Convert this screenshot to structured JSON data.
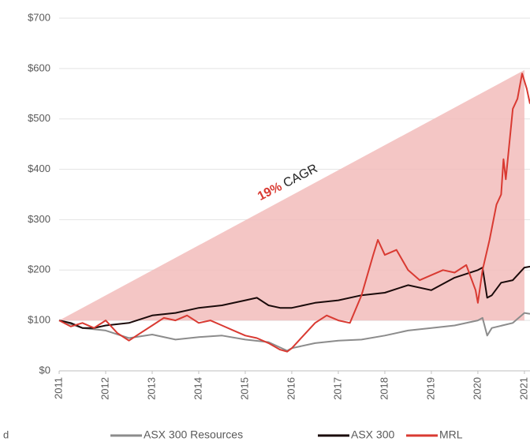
{
  "chart_data": {
    "type": "line",
    "annotation": {
      "highlight": "19%",
      "text": "CAGR",
      "color": "#d93a32"
    },
    "note": "d",
    "cagr": {
      "start": 100,
      "end": 597,
      "color": "#f2bcbb"
    },
    "xlim": [
      2011,
      2021.12
    ],
    "xticks": [
      2011,
      2012,
      2013,
      2014,
      2015,
      2016,
      2017,
      2018,
      2019,
      2020,
      2021
    ],
    "ylim": [
      0,
      700
    ],
    "yticks": [
      {
        "value": 0,
        "label": "$0"
      },
      {
        "value": 100,
        "label": "$100"
      },
      {
        "value": 200,
        "label": "$200"
      },
      {
        "value": 300,
        "label": "$300"
      },
      {
        "value": 400,
        "label": "$400"
      },
      {
        "value": 500,
        "label": "$500"
      },
      {
        "value": 600,
        "label": "$600"
      },
      {
        "value": 700,
        "label": "$700"
      }
    ],
    "grid": true,
    "series": [
      {
        "name": "ASX 300 Resources",
        "color": "#8c8c8c",
        "x": [
          2011,
          2011.5,
          2012,
          2012.5,
          2013,
          2013.5,
          2014,
          2014.5,
          2015,
          2015.5,
          2015.9,
          2016,
          2016.5,
          2017,
          2017.5,
          2018,
          2018.5,
          2019,
          2019.5,
          2020,
          2020.1,
          2020.2,
          2020.3,
          2020.75,
          2021,
          2021.12
        ],
        "values": [
          100,
          85,
          80,
          65,
          72,
          62,
          67,
          70,
          62,
          57,
          40,
          45,
          55,
          60,
          62,
          70,
          80,
          85,
          90,
          100,
          105,
          70,
          85,
          95,
          115,
          113
        ]
      },
      {
        "name": "ASX 300",
        "color": "#1a0a0a",
        "x": [
          2011,
          2011.25,
          2011.5,
          2011.75,
          2012,
          2012.5,
          2013,
          2013.5,
          2014,
          2014.5,
          2015,
          2015.25,
          2015.5,
          2015.75,
          2016,
          2016.5,
          2017,
          2017.5,
          2018,
          2018.5,
          2019,
          2019.5,
          2020,
          2020.1,
          2020.2,
          2020.3,
          2020.5,
          2020.75,
          2021,
          2021.12
        ],
        "values": [
          100,
          95,
          85,
          85,
          90,
          95,
          110,
          115,
          125,
          130,
          140,
          145,
          130,
          125,
          125,
          135,
          140,
          150,
          155,
          170,
          160,
          185,
          200,
          205,
          145,
          150,
          175,
          180,
          205,
          207
        ]
      },
      {
        "name": "MRL",
        "color": "#d93a32",
        "x": [
          2011,
          2011.25,
          2011.5,
          2011.75,
          2012,
          2012.25,
          2012.5,
          2012.75,
          2013,
          2013.25,
          2013.5,
          2013.75,
          2014,
          2014.25,
          2014.5,
          2014.75,
          2015,
          2015.25,
          2015.5,
          2015.75,
          2015.9,
          2016,
          2016.25,
          2016.5,
          2016.75,
          2017,
          2017.25,
          2017.5,
          2017.75,
          2017.85,
          2018,
          2018.25,
          2018.5,
          2018.75,
          2019,
          2019.25,
          2019.5,
          2019.75,
          2019.95,
          2020,
          2020.1,
          2020.25,
          2020.4,
          2020.5,
          2020.55,
          2020.6,
          2020.75,
          2020.85,
          2020.95,
          2021.05,
          2021.12
        ],
        "values": [
          100,
          88,
          95,
          85,
          100,
          75,
          60,
          75,
          90,
          105,
          100,
          110,
          95,
          100,
          90,
          80,
          70,
          65,
          55,
          42,
          38,
          45,
          70,
          95,
          110,
          100,
          95,
          150,
          230,
          260,
          230,
          240,
          200,
          180,
          190,
          200,
          195,
          210,
          160,
          135,
          200,
          260,
          330,
          350,
          420,
          380,
          520,
          540,
          590,
          560,
          530
        ]
      }
    ]
  }
}
